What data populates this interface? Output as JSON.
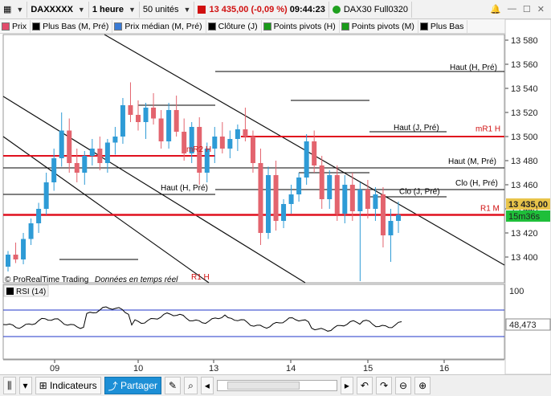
{
  "toolbar": {
    "instrument": "DAXXXXX",
    "timeframe": "1 heure",
    "units": "50 unités",
    "price": "13 435,00",
    "change": "(-0,09 %)",
    "time": "09:44:23",
    "contract": "DAX30 Full0320"
  },
  "legend": [
    {
      "label": "Prix",
      "color": "#e24b6b"
    },
    {
      "label": "Plus Bas (M, Pré)",
      "color": "#000000"
    },
    {
      "label": "Prix médian (M, Pré)",
      "color": "#3a7bd5"
    },
    {
      "label": "Clôture (J)",
      "color": "#000000"
    },
    {
      "label": "Points pivots (H)",
      "color": "#1a9b1a"
    },
    {
      "label": "Points pivots (M)",
      "color": "#1a9b1a"
    },
    {
      "label": "Plus Bas",
      "color": "#000000"
    }
  ],
  "colors": {
    "up": "#2e9bd6",
    "down": "#e3646e",
    "red_level": "#e0101e",
    "rsi_line": "#000000",
    "rsi_band": "#1f35c8"
  },
  "price_axis": {
    "ticks": [
      "13 580",
      "13 560",
      "13 540",
      "13 520",
      "13 500",
      "13 480",
      "13 460",
      "13 440",
      "13 420",
      "13 400"
    ],
    "current_price": "13 435,00",
    "countdown": "15m36s",
    "rsi_ticks": [
      "100"
    ],
    "rsi_value": "48,473"
  },
  "time_axis": [
    "09",
    "10",
    "13",
    "14",
    "15",
    "16"
  ],
  "chart_labels": {
    "haut_h_pre_top": "Haut (H, Pré)",
    "haut_j_pre": "Haut (J, Pré)",
    "mr1_h": "mR1 H",
    "haut_m_pre": "Haut (M, Pré)",
    "mr2_h": "mR2 H",
    "clo_h_pre": "Clo (H, Pré)",
    "haut_h_pre_mid": "Haut (H, Pré)",
    "clo_j_pre": "Clo (J, Pré)",
    "r1_m": "R1 M",
    "r1_h": "R1 H",
    "watermark": "© ProRealTime Trading",
    "realtime": "Données en temps réel"
  },
  "rsi_panel": {
    "label": "RSI (14)"
  },
  "bottom_bar": {
    "indicators": "Indicateurs",
    "share": "Partager"
  },
  "chart_data": {
    "type": "candlestick",
    "y_range": [
      13384,
      13592
    ],
    "candles": [
      [
        13392,
        13405,
        13388,
        13402
      ],
      [
        13402,
        13412,
        13395,
        13398
      ],
      [
        13398,
        13420,
        13394,
        13415
      ],
      [
        13415,
        13432,
        13410,
        13428
      ],
      [
        13428,
        13445,
        13420,
        13440
      ],
      [
        13440,
        13470,
        13435,
        13462
      ],
      [
        13462,
        13490,
        13455,
        13482
      ],
      [
        13482,
        13520,
        13475,
        13505
      ],
      [
        13505,
        13515,
        13470,
        13478
      ],
      [
        13478,
        13490,
        13462,
        13470
      ],
      [
        13470,
        13488,
        13460,
        13484
      ],
      [
        13484,
        13498,
        13476,
        13490
      ],
      [
        13490,
        13500,
        13472,
        13478
      ],
      [
        13478,
        13498,
        13470,
        13495
      ],
      [
        13495,
        13508,
        13485,
        13500
      ],
      [
        13500,
        13532,
        13494,
        13526
      ],
      [
        13526,
        13545,
        13512,
        13518
      ],
      [
        13518,
        13530,
        13505,
        13512
      ],
      [
        13512,
        13528,
        13498,
        13524
      ],
      [
        13524,
        13536,
        13510,
        13515
      ],
      [
        13515,
        13522,
        13490,
        13496
      ],
      [
        13496,
        13528,
        13490,
        13522
      ],
      [
        13522,
        13534,
        13500,
        13504
      ],
      [
        13504,
        13515,
        13480,
        13486
      ],
      [
        13486,
        13512,
        13478,
        13508
      ],
      [
        13508,
        13516,
        13460,
        13470
      ],
      [
        13470,
        13495,
        13462,
        13490
      ],
      [
        13490,
        13508,
        13478,
        13500
      ],
      [
        13500,
        13512,
        13486,
        13490
      ],
      [
        13490,
        13505,
        13482,
        13498
      ],
      [
        13498,
        13510,
        13488,
        13506
      ],
      [
        13506,
        13524,
        13496,
        13500
      ],
      [
        13500,
        13505,
        13470,
        13478
      ],
      [
        13478,
        13490,
        13410,
        13420
      ],
      [
        13420,
        13475,
        13415,
        13468
      ],
      [
        13468,
        13480,
        13422,
        13430
      ],
      [
        13430,
        13448,
        13424,
        13444
      ],
      [
        13444,
        13460,
        13436,
        13452
      ],
      [
        13452,
        13470,
        13446,
        13466
      ],
      [
        13466,
        13502,
        13460,
        13496
      ],
      [
        13496,
        13505,
        13470,
        13476
      ],
      [
        13476,
        13484,
        13440,
        13448
      ],
      [
        13448,
        13472,
        13440,
        13468
      ],
      [
        13468,
        13476,
        13430,
        13436
      ],
      [
        13436,
        13468,
        13428,
        13460
      ],
      [
        13460,
        13470,
        13430,
        13438
      ],
      [
        13438,
        13462,
        13380,
        13456
      ],
      [
        13456,
        13464,
        13432,
        13440
      ],
      [
        13440,
        13458,
        13430,
        13452
      ],
      [
        13452,
        13458,
        13408,
        13418
      ],
      [
        13418,
        13440,
        13396,
        13430
      ],
      [
        13430,
        13446,
        13420,
        13435
      ]
    ]
  }
}
